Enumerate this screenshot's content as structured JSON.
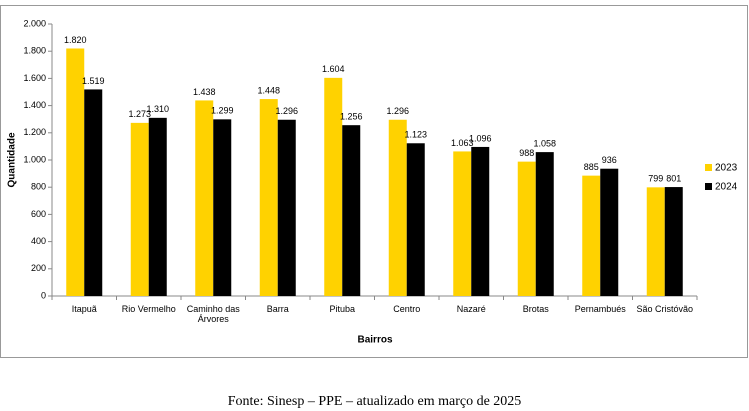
{
  "chart_data": {
    "type": "bar",
    "x_label": "Bairros",
    "y_label": "Quantidade",
    "categories": [
      "Itapuã",
      "Rio Vermelho",
      "Caminho das Árvores",
      "Barra",
      "Pituba",
      "Centro",
      "Nazaré",
      "Brotas",
      "Pernambués",
      "São Cristóvão"
    ],
    "series": [
      {
        "name": "2023",
        "color": "#ffd200",
        "values": [
          1820,
          1273,
          1438,
          1448,
          1604,
          1296,
          1063,
          988,
          885,
          799
        ],
        "value_labels": [
          "1.820",
          "1.273",
          "1.438",
          "1.448",
          "1.604",
          "1.296",
          "1.063",
          "988",
          "885",
          "799"
        ]
      },
      {
        "name": "2024",
        "color": "#000000",
        "values": [
          1519,
          1310,
          1299,
          1296,
          1256,
          1123,
          1096,
          1058,
          936,
          801
        ],
        "value_labels": [
          "1.519",
          "1.310",
          "1.299",
          "1.296",
          "1.256",
          "1.123",
          "1.096",
          "1.058",
          "936",
          "801"
        ]
      }
    ],
    "ylim": [
      0,
      2000
    ],
    "yticks": [
      0,
      200,
      400,
      600,
      800,
      {
        "value": 1000,
        "label": "1.000"
      },
      {
        "value": 1200,
        "label": "1.200"
      },
      {
        "value": 1400,
        "label": "1.400"
      },
      {
        "value": 1600,
        "label": "1.600"
      },
      {
        "value": 1800,
        "label": "1.800"
      },
      {
        "value": 2000,
        "label": "2.000"
      }
    ],
    "grid": false,
    "legend": "right",
    "source": "Fonte: Sinesp – PPE – atualizado em março de 2025"
  }
}
